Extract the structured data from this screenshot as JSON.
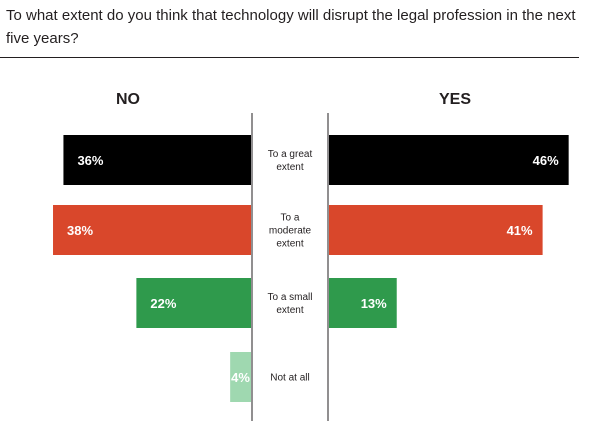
{
  "question": "To what extent do you think that technology will disrupt the legal profession in the next five years?",
  "chart_data": {
    "type": "bar",
    "layout": "diverging",
    "columns": [
      "NO",
      "YES"
    ],
    "categories": [
      [
        "To a great",
        "extent"
      ],
      [
        "To a",
        "moderate",
        "extent"
      ],
      [
        "To a small",
        "extent"
      ],
      [
        "Not at all"
      ]
    ],
    "series": [
      {
        "name": "NO",
        "values": [
          36,
          38,
          22,
          4
        ]
      },
      {
        "name": "YES",
        "values": [
          46,
          41,
          13,
          null
        ]
      }
    ],
    "value_suffix": "%",
    "colors": [
      "#000000",
      "#d9472b",
      "#2f9a4c",
      "#9fd8b0"
    ]
  }
}
